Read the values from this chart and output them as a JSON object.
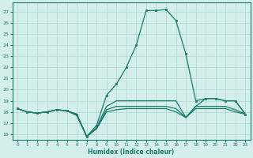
{
  "xlabel": "Humidex (Indice chaleur)",
  "background_color": "#d4eeeb",
  "grid_color": "#aed8d3",
  "line_color": "#1a7a6e",
  "xlim": [
    -0.5,
    23.5
  ],
  "ylim": [
    15.5,
    27.8
  ],
  "yticks": [
    16,
    17,
    18,
    19,
    20,
    21,
    22,
    23,
    24,
    25,
    26,
    27
  ],
  "xticks": [
    0,
    1,
    2,
    3,
    4,
    5,
    6,
    7,
    8,
    9,
    10,
    11,
    12,
    13,
    14,
    15,
    16,
    17,
    18,
    19,
    20,
    21,
    22,
    23
  ],
  "series": [
    {
      "y": [
        18.3,
        18.0,
        17.9,
        18.0,
        18.2,
        18.1,
        17.7,
        15.8,
        16.5,
        18.0,
        18.2,
        18.3,
        18.3,
        18.3,
        18.3,
        18.3,
        18.0,
        17.5,
        18.3,
        18.3,
        18.3,
        18.3,
        18.0,
        17.8
      ],
      "marker": false
    },
    {
      "y": [
        18.3,
        18.0,
        17.9,
        18.0,
        18.2,
        18.1,
        17.7,
        15.8,
        16.5,
        18.2,
        18.5,
        18.5,
        18.5,
        18.5,
        18.5,
        18.5,
        18.3,
        17.5,
        18.5,
        18.5,
        18.5,
        18.5,
        18.2,
        17.8
      ],
      "marker": false
    },
    {
      "y": [
        18.3,
        18.0,
        17.9,
        18.0,
        18.2,
        18.1,
        17.8,
        15.8,
        16.6,
        18.5,
        19.0,
        19.0,
        19.0,
        19.0,
        19.0,
        19.0,
        19.0,
        17.5,
        18.5,
        19.2,
        19.2,
        19.0,
        19.0,
        17.8
      ],
      "marker": false
    },
    {
      "y": [
        18.3,
        18.0,
        17.9,
        18.0,
        18.2,
        18.1,
        17.8,
        15.8,
        16.8,
        19.5,
        20.5,
        22.0,
        24.0,
        27.1,
        27.1,
        27.2,
        26.2,
        23.2,
        19.0,
        19.2,
        19.2,
        19.0,
        19.0,
        17.8
      ],
      "marker": true
    }
  ]
}
